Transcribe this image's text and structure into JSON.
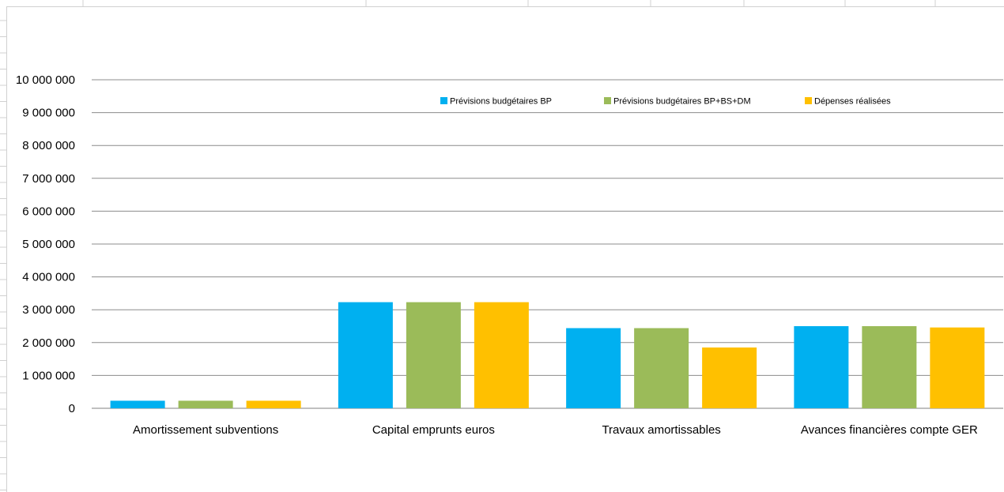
{
  "chart_data": {
    "type": "bar",
    "title": "",
    "xlabel": "",
    "ylabel": "",
    "ylim": [
      0,
      10000000
    ],
    "y_ticks": [
      0,
      1000000,
      2000000,
      3000000,
      4000000,
      5000000,
      6000000,
      7000000,
      8000000,
      9000000,
      10000000
    ],
    "y_tick_labels": [
      "0",
      "1 000 000",
      "2 000 000",
      "3 000 000",
      "4 000 000",
      "5 000 000",
      "6 000 000",
      "7 000 000",
      "8 000 000",
      "9 000 000",
      "10 000 000"
    ],
    "grid": true,
    "legend_position": "top-right",
    "categories": [
      "Amortissement subventions",
      "Capital emprunts euros",
      "Travaux amortissables",
      "Avances financières compte GER"
    ],
    "series": [
      {
        "name": "Prévisions budgétaires BP",
        "color": "#00B0F0",
        "values": [
          230000,
          3230000,
          2440000,
          2500000
        ]
      },
      {
        "name": "Prévisions budgétaires BP+BS+DM",
        "color": "#9BBB59",
        "values": [
          230000,
          3230000,
          2440000,
          2500000
        ]
      },
      {
        "name": "Dépenses réalisées",
        "color": "#FFC000",
        "values": [
          230000,
          3230000,
          1850000,
          2460000
        ]
      }
    ]
  }
}
